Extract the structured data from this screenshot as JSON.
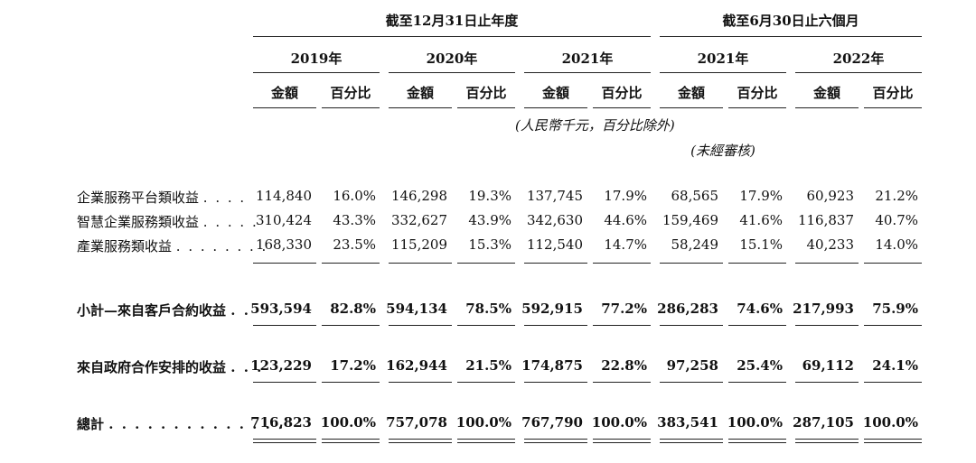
{
  "header": {
    "group_full_year": "截至12月31日止年度",
    "group_six_months": "截至6月30日止六個月",
    "years": [
      "2019年",
      "2020年",
      "2021年",
      "2021年",
      "2022年"
    ],
    "amount_label": "金額",
    "percent_label": "百分比",
    "currency_note": "(人民幣千元，百分比除外)",
    "unaudited_note": "(未經審核)"
  },
  "rows": [
    {
      "label": "企業服務平台類收益",
      "dots": ". . . .",
      "bold": false,
      "values": [
        "114,840",
        "16.0%",
        "146,298",
        "19.3%",
        "137,745",
        "17.9%",
        "68,565",
        "17.9%",
        "60,923",
        "21.2%"
      ]
    },
    {
      "label": "智慧企業服務類收益",
      "dots": ". . . . .",
      "bold": false,
      "values": [
        "310,424",
        "43.3%",
        "332,627",
        "43.9%",
        "342,630",
        "44.6%",
        "159,469",
        "41.6%",
        "116,837",
        "40.7%"
      ]
    },
    {
      "label": "產業服務類收益",
      "dots": ". . . . . . . .",
      "bold": false,
      "values": [
        "168,330",
        "23.5%",
        "115,209",
        "15.3%",
        "112,540",
        "14.7%",
        "58,249",
        "15.1%",
        "40,233",
        "14.0%"
      ]
    },
    {
      "label": "小計—來自客戶合約收益",
      "dots": ". .",
      "bold": true,
      "values": [
        "593,594",
        "82.8%",
        "594,134",
        "78.5%",
        "592,915",
        "77.2%",
        "286,283",
        "74.6%",
        "217,993",
        "75.9%"
      ]
    },
    {
      "label": "來自政府合作安排的收益",
      "dots": ". . .",
      "bold": true,
      "values": [
        "123,229",
        "17.2%",
        "162,944",
        "21.5%",
        "174,875",
        "22.8%",
        "97,258",
        "25.4%",
        "69,112",
        "24.1%"
      ]
    },
    {
      "label": "總計",
      "dots": ". . . . . . . . . . . . . .",
      "bold": true,
      "values": [
        "716,823",
        "100.0%",
        "757,078",
        "100.0%",
        "767,790",
        "100.0%",
        "383,541",
        "100.0%",
        "287,105",
        "100.0%"
      ]
    }
  ]
}
